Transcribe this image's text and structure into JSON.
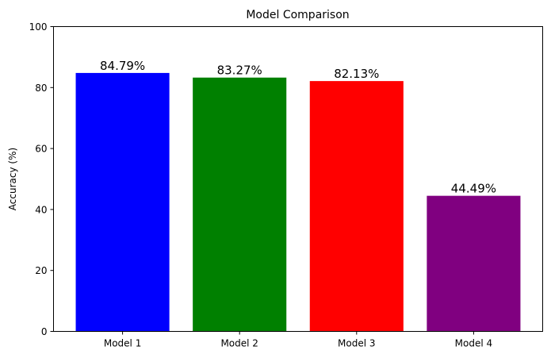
{
  "chart_data": {
    "type": "bar",
    "title": "Model Comparison",
    "xlabel": "",
    "ylabel": "Accuracy (%)",
    "categories": [
      "Model 1",
      "Model 2",
      "Model 3",
      "Model 4"
    ],
    "values": [
      84.79,
      83.27,
      82.13,
      44.49
    ],
    "data_labels": [
      "84.79%",
      "83.27%",
      "82.13%",
      "44.49%"
    ],
    "colors": [
      "#0000ff",
      "#008000",
      "#ff0000",
      "#800080"
    ],
    "ylim": [
      0,
      100
    ],
    "yticks": [
      0,
      20,
      40,
      60,
      80,
      100
    ],
    "grid": false,
    "legend": "none"
  }
}
